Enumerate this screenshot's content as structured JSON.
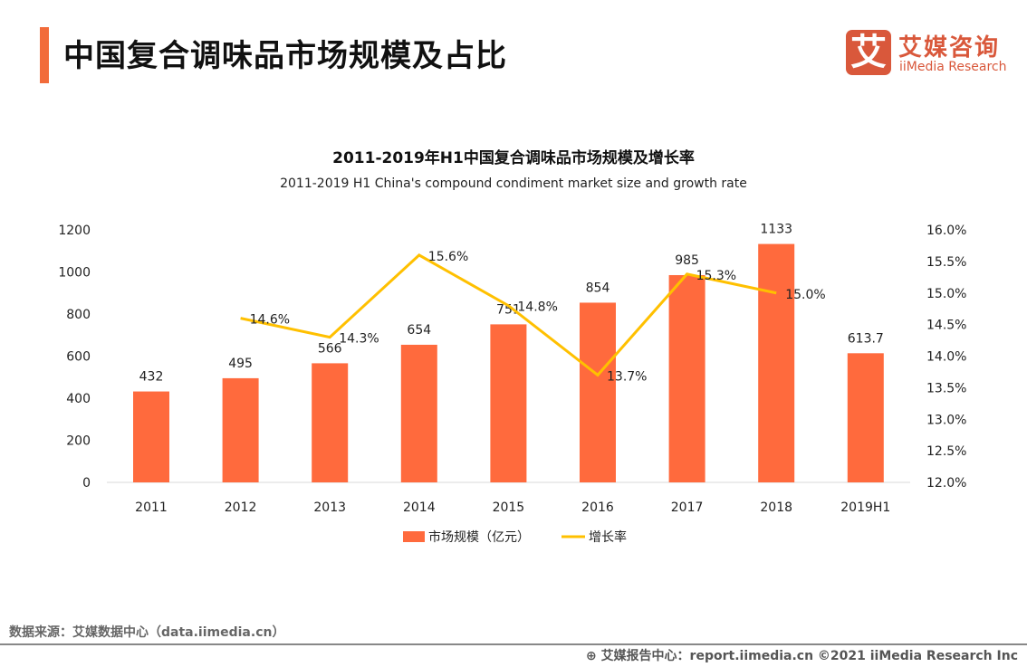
{
  "header": {
    "title": "中国复合调味品市场规模及占比",
    "logo_mark": "艾",
    "logo_cn": "艾媒咨询",
    "logo_en": "iiMedia Research"
  },
  "chart_data": {
    "type": "bar+line",
    "title": "2011-2019年H1中国复合调味品市场规模及增长率",
    "subtitle": "2011-2019 H1 China's compound condiment market size and growth rate",
    "categories": [
      "2011",
      "2012",
      "2013",
      "2014",
      "2015",
      "2016",
      "2017",
      "2018",
      "2019H1"
    ],
    "series": [
      {
        "name": "市场规模（亿元）",
        "type": "bar",
        "axis": "left",
        "color": "#ff6a3d",
        "values": [
          432,
          495,
          566,
          654,
          751,
          854,
          985,
          1133,
          613.7
        ]
      },
      {
        "name": "增长率",
        "type": "line",
        "axis": "right",
        "color": "#ffc000",
        "values": [
          null,
          14.6,
          14.3,
          15.6,
          14.8,
          13.7,
          15.3,
          15.0,
          null
        ]
      }
    ],
    "y_left": {
      "range": [
        0,
        1200
      ],
      "ticks": [
        "0",
        "200",
        "400",
        "600",
        "800",
        "1000",
        "1200"
      ]
    },
    "y_right": {
      "range": [
        12,
        16
      ],
      "ticks": [
        "12.0%",
        "12.5%",
        "13.0%",
        "13.5%",
        "14.0%",
        "14.5%",
        "15.0%",
        "15.5%",
        "16.0%"
      ]
    },
    "grid": false,
    "legend": "bottom"
  },
  "footer": {
    "source": "数据来源：艾媒数据中心（data.iimedia.cn）",
    "report": "艾媒报告中心：report.iimedia.cn   ©2021  iiMedia Research  Inc"
  }
}
